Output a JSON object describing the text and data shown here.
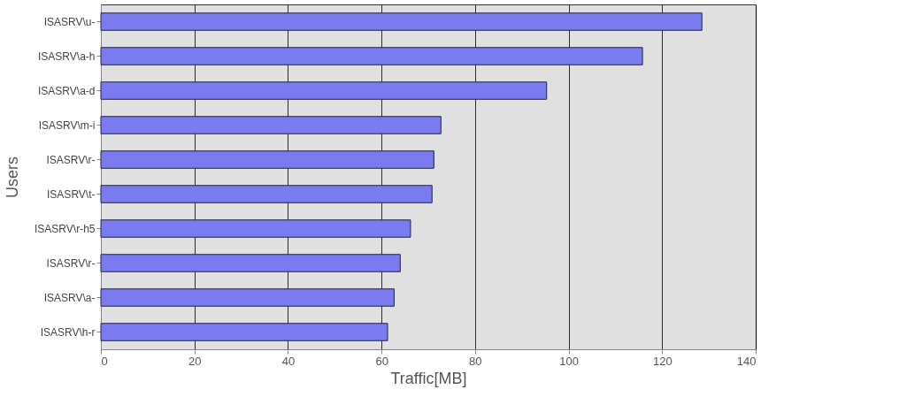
{
  "chart_data": {
    "type": "bar",
    "orientation": "horizontal",
    "xlabel": "Traffic[MB]",
    "ylabel": "Users",
    "categories": [
      "ISASRV\\u-",
      "ISASRV\\a-h",
      "ISASRV\\a-d",
      "ISASRV\\m-i",
      "ISASRV\\r-",
      "ISASRV\\t-",
      "ISASRV\\r-h5",
      "ISASRV\\r-",
      "ISASRV\\a-",
      "ISASRV\\h-r"
    ],
    "values": [
      128.5,
      115.8,
      95.3,
      72.7,
      71.2,
      70.8,
      66.2,
      64.0,
      62.7,
      61.3
    ],
    "color": "#7b7bf0",
    "xlim": [
      0,
      140
    ],
    "xticks": [
      0,
      20,
      40,
      60,
      80,
      100,
      120,
      140
    ],
    "grid": "x"
  }
}
